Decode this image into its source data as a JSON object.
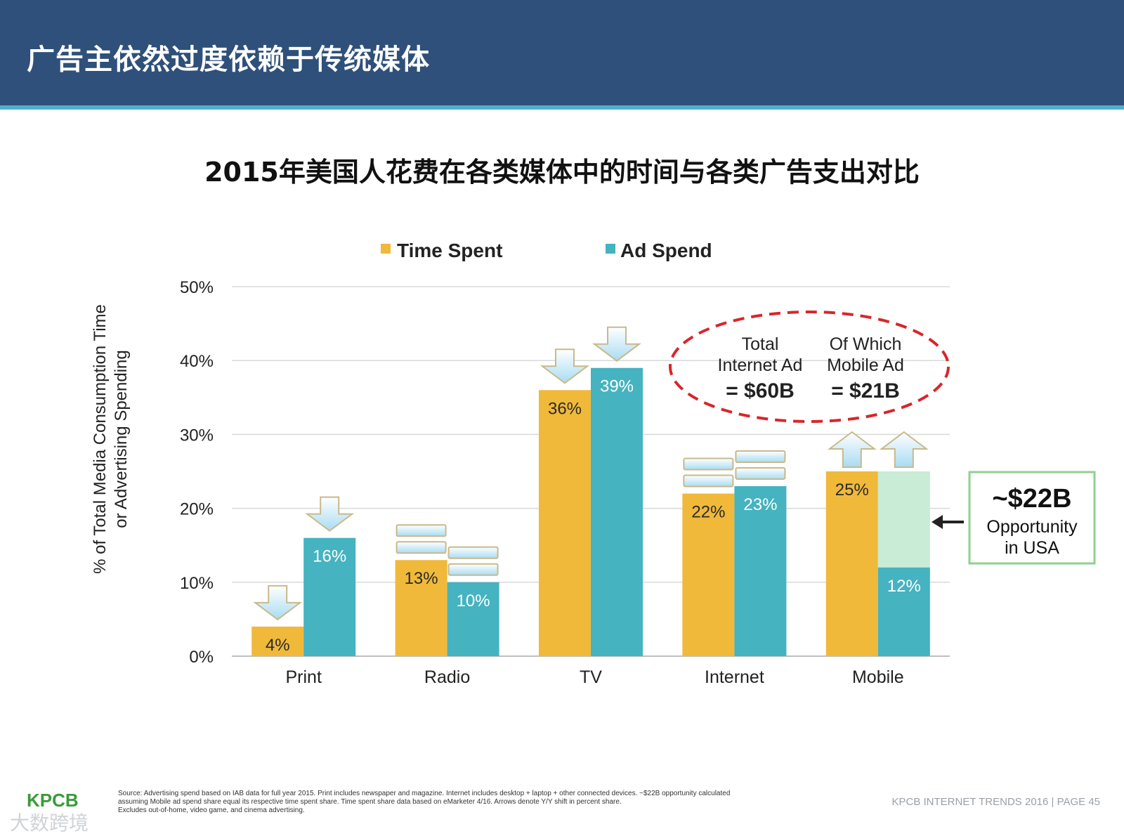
{
  "header": {
    "title": "广告主依然过度依赖于传统媒体"
  },
  "chart_data": {
    "type": "bar",
    "title": "2015年美国人花费在各类媒体中的时间与各类广告支出对比",
    "ylabel_line1": "% of Total Media Consumption Time",
    "ylabel_line2": "or Advertising Spending",
    "ylim": [
      0,
      50
    ],
    "yticks": [
      "0%",
      "10%",
      "20%",
      "30%",
      "40%",
      "50%"
    ],
    "ytick_values": [
      0,
      10,
      20,
      30,
      40,
      50
    ],
    "categories": [
      "Print",
      "Radio",
      "TV",
      "Internet",
      "Mobile"
    ],
    "series": [
      {
        "name": "Time Spent",
        "color": "#f0b93a",
        "values": [
          4,
          13,
          36,
          22,
          25
        ],
        "labels": [
          "4%",
          "13%",
          "36%",
          "22%",
          "25%"
        ]
      },
      {
        "name": "Ad Spend",
        "color": "#45b3c0",
        "values": [
          16,
          10,
          39,
          23,
          12
        ],
        "labels": [
          "16%",
          "10%",
          "39%",
          "23%",
          "12%"
        ]
      }
    ],
    "trend": [
      [
        "down",
        "down"
      ],
      [
        "flat",
        "flat"
      ],
      [
        "down",
        "down"
      ],
      [
        "flat",
        "flat"
      ],
      [
        "up",
        "up"
      ]
    ],
    "opportunity": {
      "category": "Mobile",
      "from": 12,
      "to": 25,
      "color": "#c8ecd6"
    },
    "grid": true,
    "legend": "top"
  },
  "callout_internet": {
    "col1": [
      "Total",
      "Internet Ad",
      "= $60B"
    ],
    "col2": [
      "Of Which",
      "Mobile Ad",
      "= $21B"
    ]
  },
  "callout_opportunity": {
    "line1": "~$22B",
    "line2": "Opportunity",
    "line3": "in USA"
  },
  "footer": {
    "source_line1": "Source: Advertising spend based on IAB data for full year 2015. Print includes newspaper and magazine. Internet includes desktop + laptop + other connected devices. ~$22B opportunity calculated",
    "source_line2": "assuming Mobile ad spend share equal its respective time spent share. Time spent share data based on eMarketer 4/16. Arrows denote Y/Y shift in percent share.",
    "source_line3": "Excludes out-of-home, video game, and cinema advertising.",
    "right": "KPCB INTERNET TRENDS 2016   |   PAGE 45",
    "logo": "KPCB",
    "watermark": "大数跨境"
  },
  "colors": {
    "header": "#2e507a",
    "accent": "#4fb1c8",
    "callout_red": "#d9252a",
    "opportunity_border": "#8fd08f"
  }
}
